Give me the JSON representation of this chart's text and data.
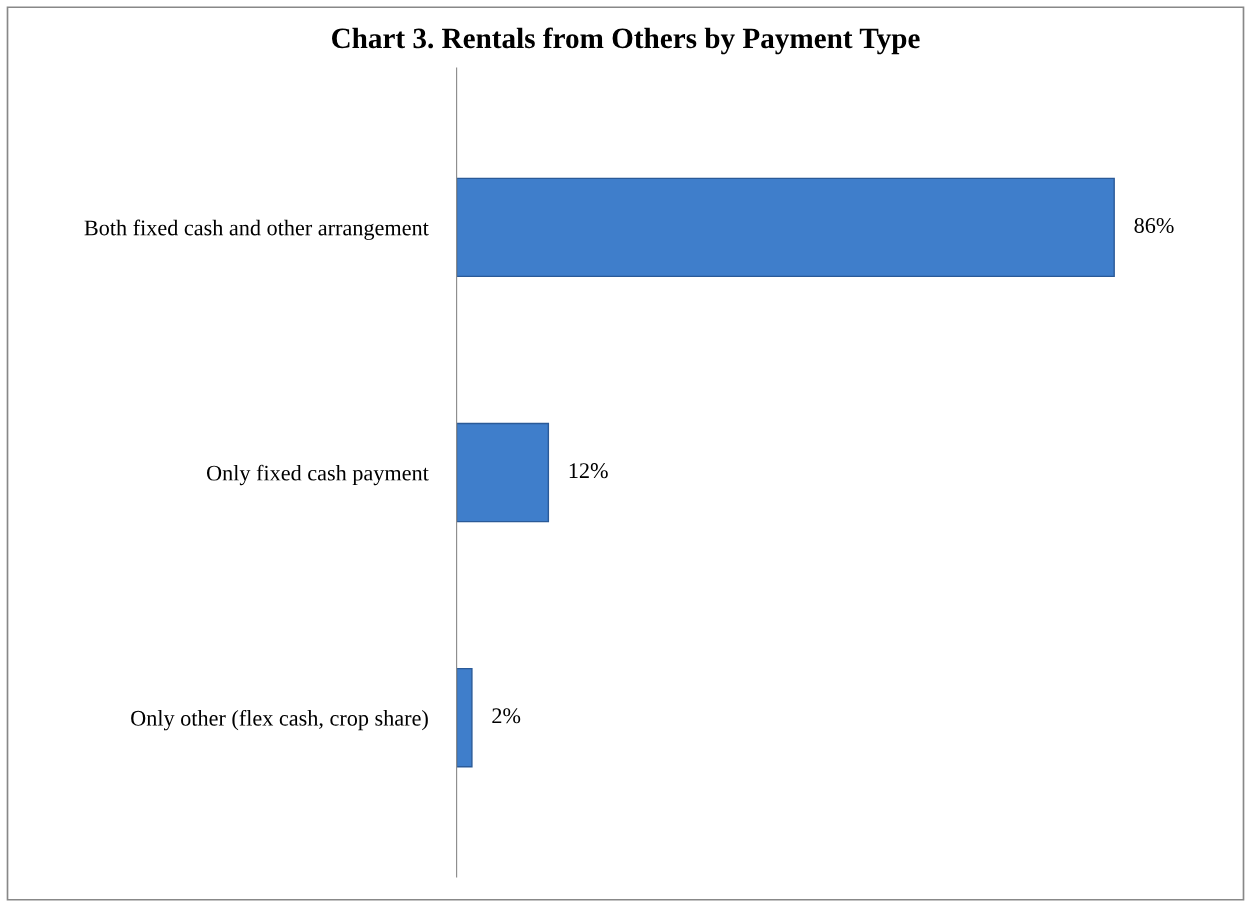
{
  "chart_data": {
    "type": "bar",
    "orientation": "horizontal",
    "title": "Chart 3. Rentals from Others by Payment Type",
    "categories": [
      "Both fixed cash and other arrangement",
      "Only fixed cash payment",
      "Only other (flex cash, crop share)"
    ],
    "values": [
      86,
      12,
      2
    ],
    "value_labels": [
      "86%",
      "12%",
      "2%"
    ],
    "color": "#3f7ecb",
    "grid": false,
    "legend": false,
    "tick_labels": "y"
  }
}
